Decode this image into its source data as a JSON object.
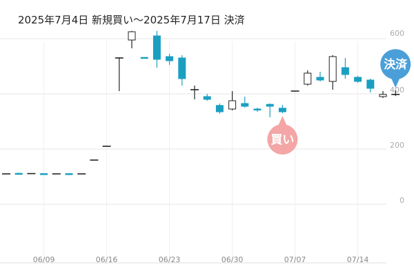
{
  "chart_data": {
    "type": "candlestick",
    "title": "2025年7月4日 新規買い〜2025年7月17日 決済",
    "y_ticks": [
      "600",
      "400",
      "200",
      "0"
    ],
    "y_tick_values": [
      600,
      400,
      200,
      0
    ],
    "ylim": [
      -210,
      640
    ],
    "x_ticks": [
      {
        "label": "06/09",
        "index": 3
      },
      {
        "label": "06/16",
        "index": 8
      },
      {
        "label": "06/23",
        "index": 13
      },
      {
        "label": "06/30",
        "index": 18
      },
      {
        "label": "07/07",
        "index": 23
      },
      {
        "label": "07/14",
        "index": 28
      }
    ],
    "grid": true,
    "colors": {
      "up": "#ffffff",
      "down": "#1a9fc0",
      "flat": "#222222",
      "buy_badge": "#f4a6a6",
      "sell_badge": "#4a9fd8",
      "grid": "#e6e6e6",
      "tick": "#888888"
    },
    "candles": [
      {
        "o": 110,
        "h": 111,
        "l": 109,
        "c": 110
      },
      {
        "o": 112,
        "h": 114,
        "l": 110,
        "c": 111
      },
      {
        "o": 111,
        "h": 112,
        "l": 110,
        "c": 111
      },
      {
        "o": 111,
        "h": 112,
        "l": 110,
        "c": 110
      },
      {
        "o": 110,
        "h": 111,
        "l": 109,
        "c": 110
      },
      {
        "o": 111,
        "h": 112,
        "l": 109,
        "c": 110
      },
      {
        "o": 110,
        "h": 111,
        "l": 109,
        "c": 110
      },
      {
        "o": 160,
        "h": 161,
        "l": 159,
        "c": 160
      },
      {
        "o": 210,
        "h": 212,
        "l": 209,
        "c": 210
      },
      {
        "o": 530,
        "h": 532,
        "l": 410,
        "c": 530
      },
      {
        "o": 595,
        "h": 628,
        "l": 565,
        "c": 625
      },
      {
        "o": 532,
        "h": 533,
        "l": 530,
        "c": 531
      },
      {
        "o": 610,
        "h": 628,
        "l": 495,
        "c": 525
      },
      {
        "o": 535,
        "h": 545,
        "l": 505,
        "c": 520
      },
      {
        "o": 530,
        "h": 540,
        "l": 430,
        "c": 455
      },
      {
        "o": 415,
        "h": 430,
        "l": 380,
        "c": 415
      },
      {
        "o": 390,
        "h": 400,
        "l": 375,
        "c": 380
      },
      {
        "o": 358,
        "h": 365,
        "l": 328,
        "c": 335
      },
      {
        "o": 345,
        "h": 410,
        "l": 340,
        "c": 375
      },
      {
        "o": 365,
        "h": 390,
        "l": 350,
        "c": 355
      },
      {
        "o": 345,
        "h": 350,
        "l": 335,
        "c": 342
      },
      {
        "o": 362,
        "h": 365,
        "l": 315,
        "c": 355
      },
      {
        "o": 348,
        "h": 360,
        "l": 330,
        "c": 335
      },
      {
        "o": 410,
        "h": 411,
        "l": 409,
        "c": 410
      },
      {
        "o": 435,
        "h": 485,
        "l": 430,
        "c": 475
      },
      {
        "o": 460,
        "h": 480,
        "l": 445,
        "c": 450
      },
      {
        "o": 445,
        "h": 540,
        "l": 415,
        "c": 535
      },
      {
        "o": 495,
        "h": 530,
        "l": 455,
        "c": 470
      },
      {
        "o": 460,
        "h": 465,
        "l": 440,
        "c": 445
      },
      {
        "o": 450,
        "h": 455,
        "l": 405,
        "c": 420
      },
      {
        "o": 390,
        "h": 410,
        "l": 385,
        "c": 398
      },
      {
        "o": 398,
        "h": 412,
        "l": 392,
        "c": 398
      }
    ],
    "annotations": [
      {
        "type": "buy",
        "label": "買い",
        "index": 22
      },
      {
        "type": "sell",
        "label": "決済",
        "index": 31
      }
    ]
  }
}
